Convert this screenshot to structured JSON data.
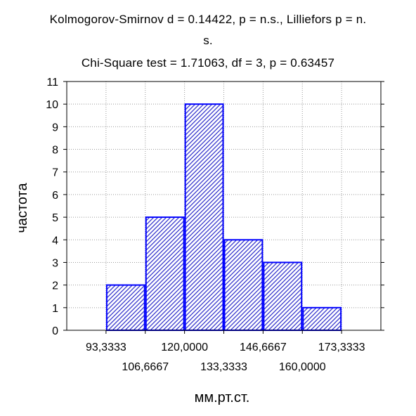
{
  "chart_data": {
    "type": "bar",
    "subtype": "histogram",
    "title_lines": [
      "Kolmogorov-Smirnov d = 0.14422, p = n.s., Lilliefors p = n.",
      "s.",
      "Chi-Square test = 1.71063, df = 3, p = 0.63457"
    ],
    "xlabel": "мм.рт.ст.",
    "ylabel": "частота",
    "bins": [
      {
        "from": 93.3333,
        "to": 106.6667,
        "value": 2
      },
      {
        "from": 106.6667,
        "to": 120.0,
        "value": 5
      },
      {
        "from": 120.0,
        "to": 133.3333,
        "value": 10
      },
      {
        "from": 133.3333,
        "to": 146.6667,
        "value": 4
      },
      {
        "from": 146.6667,
        "to": 160.0,
        "value": 3
      },
      {
        "from": 160.0,
        "to": 173.3333,
        "value": 1
      }
    ],
    "xticks_row1": [
      {
        "value": 93.3333,
        "label": "93,3333"
      },
      {
        "value": 120.0,
        "label": "120,0000"
      },
      {
        "value": 146.6667,
        "label": "146,6667"
      },
      {
        "value": 173.3333,
        "label": "173,3333"
      }
    ],
    "xticks_row2": [
      {
        "value": 106.6667,
        "label": "106,6667"
      },
      {
        "value": 133.3333,
        "label": "133,3333"
      },
      {
        "value": 160.0,
        "label": "160,0000"
      }
    ],
    "xlim": [
      80.0,
      186.6667
    ],
    "yticks": [
      0,
      1,
      2,
      3,
      4,
      5,
      6,
      7,
      8,
      9,
      10,
      11
    ],
    "ylim": [
      0,
      11
    ],
    "grid": true,
    "bar_fill": "hatched",
    "colors": {
      "bar_outline": "#0000ff",
      "hatch": "#3333cc",
      "grid": "#999999",
      "axis": "#000000"
    }
  }
}
